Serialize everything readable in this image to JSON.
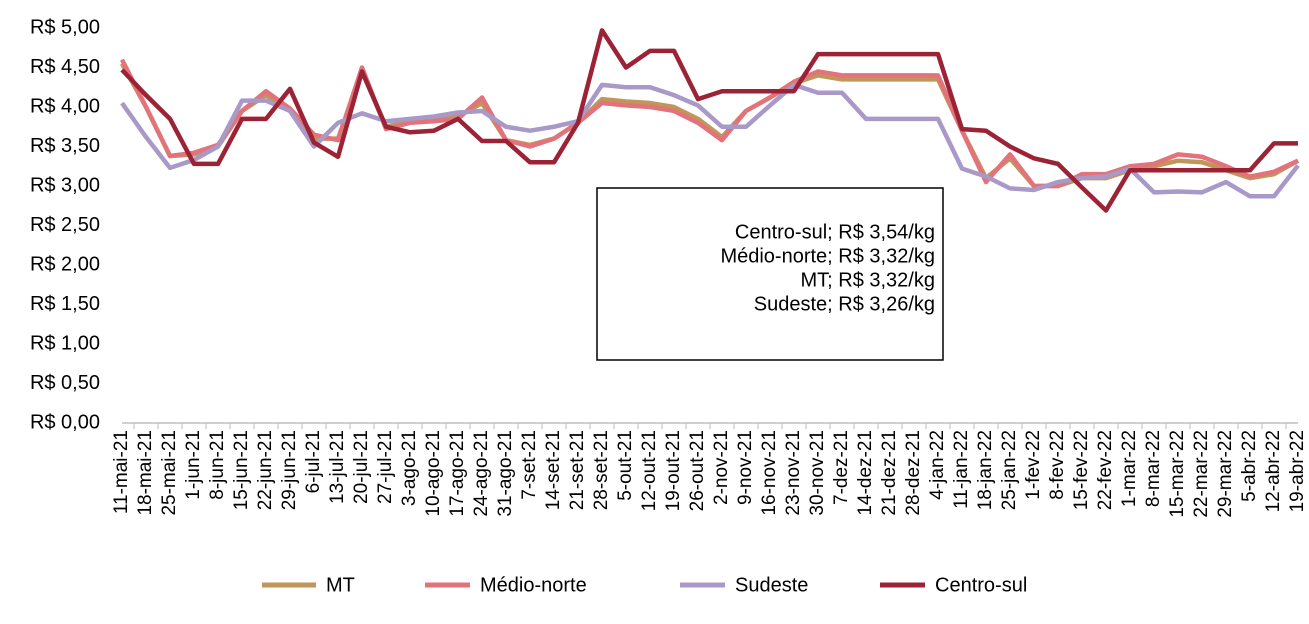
{
  "chart_data": {
    "type": "line",
    "categories": [
      "11-mai-21",
      "18-mai-21",
      "25-mai-21",
      "1-jun-21",
      "8-jun-21",
      "15-jun-21",
      "22-jun-21",
      "29-jun-21",
      "6-jul-21",
      "13-jul-21",
      "20-jul-21",
      "27-jul-21",
      "3-ago-21",
      "10-ago-21",
      "17-ago-21",
      "24-ago-21",
      "31-ago-21",
      "7-set-21",
      "14-set-21",
      "21-set-21",
      "28-set-21",
      "5-out-21",
      "12-out-21",
      "19-out-21",
      "26-out-21",
      "2-nov-21",
      "9-nov-21",
      "16-nov-21",
      "23-nov-21",
      "30-nov-21",
      "7-dez-21",
      "14-dez-21",
      "21-dez-21",
      "28-dez-21",
      "4-jan-22",
      "11-jan-22",
      "18-jan-22",
      "25-jan-22",
      "1-fev-22",
      "8-fev-22",
      "15-fev-22",
      "22-fev-22",
      "1-mar-22",
      "8-mar-22",
      "15-mar-22",
      "22-mar-22",
      "29-mar-22",
      "5-abr-22",
      "12-abr-22",
      "19-abr-22"
    ],
    "series": [
      {
        "name": "MT",
        "color": "#c0965a",
        "values": [
          4.55,
          4.0,
          3.38,
          3.4,
          3.5,
          3.95,
          4.15,
          3.95,
          3.6,
          3.6,
          4.45,
          3.75,
          3.82,
          3.85,
          3.88,
          4.05,
          3.58,
          3.52,
          3.6,
          3.8,
          4.1,
          4.07,
          4.05,
          4.0,
          3.85,
          3.62,
          3.95,
          4.12,
          4.3,
          4.4,
          4.35,
          4.35,
          4.35,
          4.35,
          4.35,
          3.7,
          3.1,
          3.35,
          3.0,
          3.0,
          3.1,
          3.1,
          3.2,
          3.25,
          3.32,
          3.3,
          3.2,
          3.1,
          3.15,
          3.32
        ]
      },
      {
        "name": "Médio-norte",
        "color": "#e2737a",
        "values": [
          4.6,
          4.0,
          3.38,
          3.42,
          3.52,
          3.95,
          4.2,
          3.98,
          3.65,
          3.58,
          4.5,
          3.72,
          3.8,
          3.82,
          3.85,
          4.12,
          3.58,
          3.5,
          3.6,
          3.8,
          4.05,
          4.02,
          4.0,
          3.95,
          3.8,
          3.58,
          3.95,
          4.12,
          4.32,
          4.45,
          4.4,
          4.4,
          4.4,
          4.4,
          4.4,
          3.7,
          3.05,
          3.4,
          3.0,
          3.0,
          3.15,
          3.15,
          3.25,
          3.28,
          3.4,
          3.37,
          3.25,
          3.12,
          3.18,
          3.32
        ]
      },
      {
        "name": "Sudeste",
        "color": "#a899c8",
        "values": [
          4.05,
          3.62,
          3.23,
          3.33,
          3.5,
          4.08,
          4.08,
          3.95,
          3.5,
          3.8,
          3.92,
          3.82,
          3.85,
          3.88,
          3.93,
          3.95,
          3.75,
          3.7,
          3.75,
          3.82,
          4.28,
          4.25,
          4.25,
          4.15,
          4.02,
          3.75,
          3.75,
          4.02,
          4.28,
          4.18,
          4.18,
          3.85,
          3.85,
          3.85,
          3.85,
          3.22,
          3.12,
          2.97,
          2.95,
          3.05,
          3.1,
          3.12,
          3.22,
          2.92,
          2.93,
          2.92,
          3.05,
          2.87,
          2.87,
          3.26
        ]
      },
      {
        "name": "Centro-sul",
        "color": "#9b2335",
        "values": [
          4.47,
          4.15,
          3.85,
          3.28,
          3.28,
          3.85,
          3.85,
          4.23,
          3.55,
          3.37,
          4.45,
          3.75,
          3.68,
          3.7,
          3.85,
          3.57,
          3.57,
          3.3,
          3.3,
          3.8,
          4.97,
          4.5,
          4.71,
          4.71,
          4.1,
          4.2,
          4.2,
          4.2,
          4.2,
          4.67,
          4.67,
          4.67,
          4.67,
          4.67,
          4.67,
          3.72,
          3.7,
          3.5,
          3.35,
          3.28,
          2.98,
          2.69,
          3.2,
          3.2,
          3.2,
          3.2,
          3.2,
          3.2,
          3.54,
          3.54
        ]
      }
    ],
    "ylim": [
      0,
      5
    ],
    "yticks": [
      {
        "value": 0,
        "label": "R$ 0,00"
      },
      {
        "value": 0.5,
        "label": "R$ 0,50"
      },
      {
        "value": 1,
        "label": "R$ 1,00"
      },
      {
        "value": 1.5,
        "label": "R$ 1,50"
      },
      {
        "value": 2,
        "label": "R$ 2,00"
      },
      {
        "value": 2.5,
        "label": "R$ 2,50"
      },
      {
        "value": 3,
        "label": "R$ 3,00"
      },
      {
        "value": 3.5,
        "label": "R$ 3,50"
      },
      {
        "value": 4,
        "label": "R$ 4,00"
      },
      {
        "value": 4.5,
        "label": "R$ 4,50"
      },
      {
        "value": 5,
        "label": "R$ 5,00"
      }
    ],
    "annotations": [
      "Centro-sul; R$ 3,54/kg",
      "Médio-norte; R$ 3,32/kg",
      "MT; R$ 3,32/kg",
      "Sudeste; R$ 3,26/kg"
    ],
    "legend": "bottom"
  }
}
